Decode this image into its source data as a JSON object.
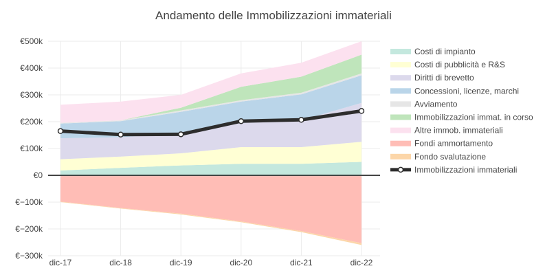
{
  "chart_data": {
    "type": "area",
    "title": "Andamento delle Immobilizzazioni immateriali",
    "xlabel": "",
    "ylabel": "",
    "categories": [
      "dic-17",
      "dic-18",
      "dic-19",
      "dic-20",
      "dic-21",
      "dic-22"
    ],
    "ylim": [
      -300000,
      500000
    ],
    "yticks": [
      {
        "value": -300000,
        "label": "€−300k"
      },
      {
        "value": -200000,
        "label": "€−200k"
      },
      {
        "value": -100000,
        "label": "€−100k"
      },
      {
        "value": 0,
        "label": "€0"
      },
      {
        "value": 100000,
        "label": "€100k"
      },
      {
        "value": 200000,
        "label": "€200k"
      },
      {
        "value": 300000,
        "label": "€300k"
      },
      {
        "value": 400000,
        "label": "€400k"
      },
      {
        "value": 500000,
        "label": "€500k"
      }
    ],
    "grid": true,
    "legend_position": "right",
    "positive_stack": [
      {
        "name": "Costi di impianto",
        "color": "#c4e8de",
        "values": [
          18000,
          28000,
          37000,
          43000,
          43000,
          50000
        ]
      },
      {
        "name": "Costi di pubblicità e R&S",
        "color": "#ffffd4",
        "values": [
          42000,
          42000,
          45000,
          62000,
          62000,
          75000
        ]
      },
      {
        "name": "Diritti di brevetto",
        "color": "#dcd9ec",
        "values": [
          78000,
          72000,
          75000,
          90000,
          100000,
          145000
        ]
      },
      {
        "name": "Concessioni, licenze, marchi",
        "color": "#bad5e9",
        "values": [
          55000,
          60000,
          80000,
          80000,
          97000,
          103000
        ]
      },
      {
        "name": "Avviamento",
        "color": "#e6e6e6",
        "values": [
          3000,
          3000,
          5000,
          5000,
          6000,
          7000
        ]
      },
      {
        "name": "Immobilizzazioni immat. in corso",
        "color": "#bfe5bb",
        "values": [
          0,
          0,
          10000,
          50000,
          60000,
          70000
        ]
      },
      {
        "name": "Altre immob. immateriali",
        "color": "#fce1ef",
        "values": [
          67000,
          70000,
          48000,
          50000,
          52000,
          50000
        ]
      }
    ],
    "negative_stack": [
      {
        "name": "Fondi ammortamento",
        "color": "#ffbdb6",
        "values": [
          -98000,
          -122000,
          -143000,
          -172000,
          -208000,
          -253000
        ]
      },
      {
        "name": "Fondo svalutazione",
        "color": "#fcd6a9",
        "values": [
          -2000,
          -2000,
          -3000,
          -3000,
          -4000,
          -7000
        ]
      }
    ],
    "line": {
      "name": "Immobilizzazioni immateriali",
      "color": "#2d2d2d",
      "values": [
        165000,
        152000,
        153000,
        202000,
        207000,
        240000
      ]
    }
  }
}
